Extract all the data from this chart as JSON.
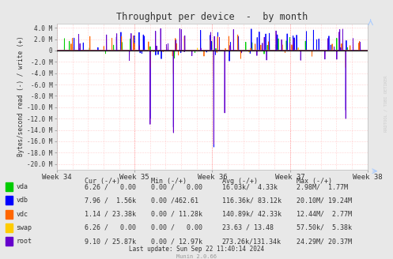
{
  "title": "Throughput per device  -  by month",
  "ylabel": "Bytes/second read (-) / write (+)",
  "xlabel_ticks": [
    "Week 34",
    "Week 35",
    "Week 36",
    "Week 37",
    "Week 38"
  ],
  "ylim": [
    -21000000,
    4800000
  ],
  "yticks": [
    -20000000,
    -18000000,
    -16000000,
    -14000000,
    -12000000,
    -10000000,
    -8000000,
    -6000000,
    -4000000,
    -2000000,
    0,
    2000000,
    4000000
  ],
  "ytick_labels": [
    "-20.0 M",
    "-18.0 M",
    "-16.0 M",
    "-14.0 M",
    "-12.0 M",
    "-10.0 M",
    "-8.0 M",
    "-6.0 M",
    "-4.0 M",
    "-2.0 M",
    "0",
    "2.0 M",
    "4.0 M"
  ],
  "bg_color": "#e8e8e8",
  "plot_bg_color": "#ffffff",
  "devices": [
    {
      "name": "vda",
      "color": "#00cc00"
    },
    {
      "name": "vdb",
      "color": "#0000ff"
    },
    {
      "name": "vdc",
      "color": "#ff6600"
    },
    {
      "name": "swap",
      "color": "#ffcc00"
    },
    {
      "name": "root",
      "color": "#6600cc"
    }
  ],
  "legend_header": [
    "",
    "Cur (-/+)",
    "Min (-/+)",
    "Avg (-/+)",
    "Max (-/+)"
  ],
  "legend_rows": [
    [
      "vda",
      "6.26 /   0.00",
      "0.00 /   0.00",
      "16.03k/  4.33k",
      "2.98M/  1.77M"
    ],
    [
      "vdb",
      "7.96 /  1.56k",
      "0.00 /462.61",
      "116.36k/ 83.12k",
      "20.10M/ 19.24M"
    ],
    [
      "vdc",
      "1.14 / 23.38k",
      "0.00 / 11.28k",
      "140.89k/ 42.33k",
      "12.44M/  2.77M"
    ],
    [
      "swap",
      "6.26 /   0.00",
      "0.00 /   0.00",
      "23.63 / 13.48",
      "57.50k/  5.38k"
    ],
    [
      "root",
      "9.10 / 25.87k",
      "0.00 / 12.97k",
      "273.26k/131.34k",
      "24.29M/ 20.37M"
    ]
  ],
  "last_update": "Last update: Sun Sep 22 11:40:14 2024",
  "munin_version": "Munin 2.0.66",
  "watermark": "RRDTOOL / TOBI OETIKER"
}
